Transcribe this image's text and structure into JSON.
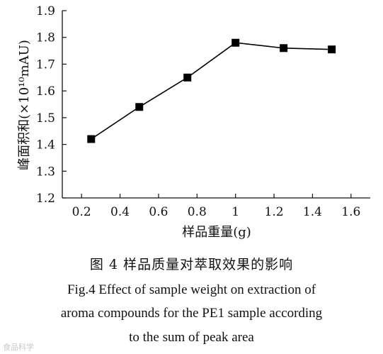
{
  "chart_data": {
    "type": "line",
    "x": [
      0.25,
      0.5,
      0.75,
      1.0,
      1.25,
      1.5
    ],
    "series": [
      {
        "values": [
          1.42,
          1.54,
          1.65,
          1.78,
          1.76,
          1.755
        ],
        "color": "#000000",
        "marker": "square"
      }
    ],
    "xlabel": "样品重量(g)",
    "ylabel": "峰面积和(×10¹⁰mAU)",
    "xlim": [
      0.1,
      1.7
    ],
    "ylim": [
      1.2,
      1.9
    ],
    "xticks": [
      "0.2",
      "0.4",
      "0.6",
      "0.8",
      "1",
      "1.2",
      "1.4",
      "1.6"
    ],
    "yticks": [
      "1.2",
      "1.3",
      "1.4",
      "1.5",
      "1.6",
      "1.7",
      "1.8",
      "1.9"
    ],
    "grid": false,
    "legend": "none"
  },
  "caption": {
    "cn": "图 4    样品质量对萃取效果的影响",
    "en_line1": "Fig.4    Effect of sample weight on extraction of",
    "en_line2": "aroma compounds for the PE1 sample according",
    "en_line3": "to the sum of peak area"
  },
  "watermark": "食品科学"
}
